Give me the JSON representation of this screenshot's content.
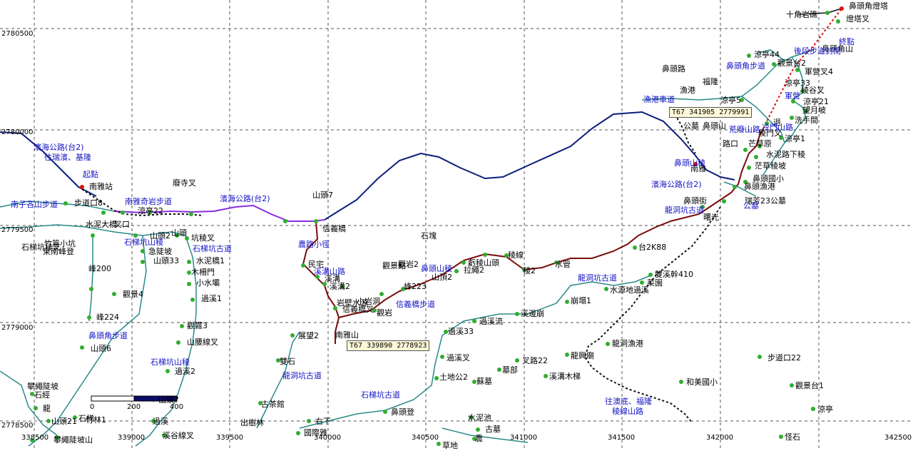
{
  "map": {
    "grid_x": [
      "338500",
      "339000",
      "339500",
      "340000",
      "340500",
      "341000",
      "341500",
      "342000",
      "342500"
    ],
    "grid_y": [
      "2780500",
      "2780000",
      "2779500",
      "2779000",
      "2778500"
    ],
    "waypoint_boxes": [
      {
        "id": "wp1",
        "text": "T67  341905 2779991"
      },
      {
        "id": "wp2",
        "text": "T67  339890 2778923"
      }
    ],
    "scale_bar": {
      "ticks": [
        "0",
        "200",
        "400"
      ]
    },
    "labels_black": [
      "鼻頭角燈塔",
      "十角岩礁",
      "燈塔叉",
      "鼻頭角山",
      "涼亭44",
      "觀景台2",
      "軍營叉4",
      "涼亭33",
      "稜谷叉",
      "涼亭21",
      "望月坡",
      "洗手間",
      "涼亭1",
      "退",
      "涼亭5",
      "鼻頭國小",
      "漁港",
      "鼻頭路",
      "福隆",
      "南雅站",
      "步道口8",
      "涼亭22",
      "廢寺叉",
      "水泥大橋",
      "叉口",
      "山頭2",
      "山頭",
      "坑稜叉",
      "水泥橋1",
      "急陡坡",
      "山頭33",
      "木柵門",
      "小水壩",
      "過溪1",
      "觀景4",
      "峰200",
      "峰224",
      "山頭6",
      "觀霧3",
      "山腰線叉",
      "過溪2",
      "竹篙小坑",
      "東南峰登",
      "龍",
      "石經",
      "山頭21",
      "攀繩陡坡",
      "攀繩陡坡山",
      "石梯坑稜叉",
      "石梯",
      "山頭7",
      "過溪",
      "溪谷線叉",
      "出樹林",
      "古茶館",
      "雙石",
      "展望2",
      "右下",
      "國際雅",
      "竹林1",
      "山頭7",
      "信義橋",
      "民宅",
      "溪溝",
      "溪溝2",
      "岩壁水源",
      "小岩洞",
      "觀岩",
      "信義橋叉",
      "南雅山",
      "觀景點",
      "觀岩2",
      "峰223",
      "山頂2",
      "虧稜山頭",
      "拉繩2",
      "稜線",
      "稜2",
      "水管",
      "台2K88",
      "雙溪幹410",
      "菜園",
      "水源地過溪",
      "崩塌1",
      "溪邊崩",
      "過溪流",
      "過溪33",
      "過溪叉",
      "土地公2",
      "蘇墓",
      "墓部",
      "叉路22",
      "溪溝木梯",
      "龍興廟",
      "龍洞漁港",
      "和美國小",
      "步道口22",
      "觀景台1",
      "涼亭",
      "怪石",
      "水泥池",
      "古墓",
      "草地",
      "農",
      "鼻頭登",
      "石塊",
      "茫草稜坡",
      "稜門叉",
      "芒草原",
      "水泥路下稜",
      "曙光",
      "瑞芳23公墓",
      "鼻頭街",
      "鼻頭漁港",
      "南雅",
      "公墓",
      "鼻頭山",
      "路口"
    ],
    "labels_blue": [
      "濱海公路(台2)",
      "往瑞濱、基隆",
      "起點",
      "南雅奇岩步道",
      "南子吝山步道",
      "石梯坑山稜",
      "石梯坑古道",
      "農路小徑",
      "溪溝山路",
      "鼻頭山稜",
      "信義橋步道",
      "濱海公路(台2)",
      "漁港車道",
      "龍洞坑古道",
      "濱海公路(台2)",
      "往澳底、福隆",
      "稜線山路",
      "龍洞坑古道",
      "石梯坑古道",
      "石梯坑山稜",
      "鼻頭角步道",
      "鼻頭角步道",
      "冷門山路",
      "荒廢山路",
      "軍營",
      "後段步道封閉",
      "終點",
      "鼻頭山稜",
      "龍洞坑古道",
      "公墓"
    ]
  }
}
